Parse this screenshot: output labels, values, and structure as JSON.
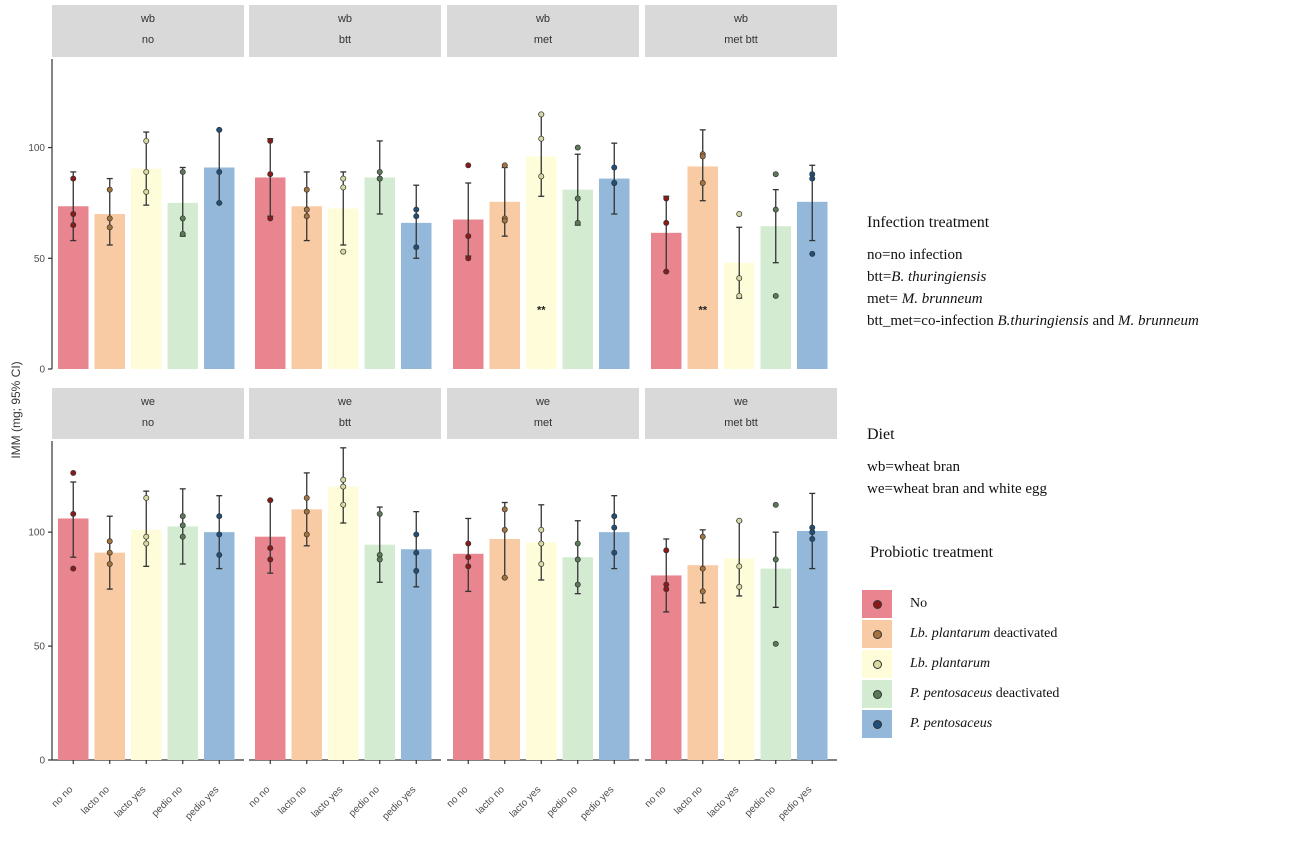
{
  "colors": {
    "no_no": "#e8858f",
    "lacto_no": "#f9cba4",
    "lacto_yes": "#fefcd9",
    "pedio_no": "#d3ecd1",
    "pedio_yes": "#93b8d9"
  },
  "legend": {
    "infection_title": "Infection treatment",
    "infection_items": [
      {
        "pre": "no=no infection",
        "it1": "",
        "mid": "",
        "it2": ""
      },
      {
        "pre": "btt=",
        "it1": "B. thuringiensis",
        "mid": "",
        "it2": ""
      },
      {
        "pre": "met= ",
        "it1": "M. brunneum",
        "mid": "",
        "it2": ""
      },
      {
        "pre": "btt_met=co-infection ",
        "it1": "B.thuringiensis",
        "mid": " and ",
        "it2": "M. brunneum"
      }
    ],
    "diet_title": "Diet",
    "diet_items": [
      "wb=wheat bran",
      "we=wheat bran and white egg"
    ],
    "probiotic_title": "Probiotic treatment",
    "probiotic_items": [
      {
        "it": "",
        "rest": "No",
        "color": "#e8858f",
        "dot": "#8b1a1a"
      },
      {
        "it": "Lb. plantarum",
        "rest": " deactivated",
        "color": "#f9cba4",
        "dot": "#a3743f"
      },
      {
        "it": "Lb. plantarum",
        "rest": "",
        "color": "#fefcd9",
        "dot": "#d9d9a3"
      },
      {
        "it": "P. pentosaceus",
        "rest": " deactivated",
        "color": "#d3ecd1",
        "dot": "#5a7a58"
      },
      {
        "it": "P. pentosaceus",
        "rest": "",
        "color": "#93b8d9",
        "dot": "#1f4f7a"
      }
    ]
  },
  "chart_data": {
    "type": "bar",
    "ylabel": "IMM (mg; 95% CI)",
    "ylim": [
      0,
      140
    ],
    "yticks": [
      0,
      50,
      100
    ],
    "categories": [
      "no no",
      "lacto no",
      "lacto yes",
      "pedio no",
      "pedio yes"
    ],
    "category_colors": [
      "#e8858f",
      "#f9cba4",
      "#fefcd9",
      "#d3ecd1",
      "#93b8d9"
    ],
    "point_colors": [
      "#8b1a1a",
      "#a3743f",
      "#d9d9a3",
      "#5a7a58",
      "#1f4f7a"
    ],
    "panels": [
      {
        "diet": "wb",
        "infection": "no",
        "row": 0,
        "col": 0,
        "sig": [],
        "values": [
          73.5,
          70,
          90.5,
          75,
          91
        ],
        "ci": [
          [
            58,
            89
          ],
          [
            56,
            86
          ],
          [
            74,
            107
          ],
          [
            60,
            91
          ],
          [
            75,
            108
          ]
        ],
        "points": [
          [
            86,
            70,
            65
          ],
          [
            81,
            68,
            64
          ],
          [
            103,
            89,
            80
          ],
          [
            89,
            68,
            61
          ],
          [
            108,
            89,
            75
          ]
        ]
      },
      {
        "diet": "wb",
        "infection": "btt",
        "row": 0,
        "col": 1,
        "sig": [],
        "values": [
          86.5,
          73.5,
          72.5,
          86.5,
          66
        ],
        "ci": [
          [
            69,
            104
          ],
          [
            58,
            89
          ],
          [
            56,
            89
          ],
          [
            70,
            103
          ],
          [
            50,
            83
          ]
        ],
        "points": [
          [
            103,
            88,
            68
          ],
          [
            81,
            72,
            69
          ],
          [
            86,
            82,
            53
          ],
          [
            89,
            86,
            86
          ],
          [
            72,
            69,
            55
          ]
        ]
      },
      {
        "diet": "wb",
        "infection": "met",
        "row": 0,
        "col": 2,
        "sig": [
          2
        ],
        "values": [
          67.5,
          75.5,
          96,
          81,
          86
        ],
        "ci": [
          [
            51,
            84
          ],
          [
            60,
            91
          ],
          [
            78,
            115
          ],
          [
            65,
            97
          ],
          [
            70,
            102
          ]
        ],
        "points": [
          [
            92,
            60,
            50
          ],
          [
            92,
            68,
            67
          ],
          [
            115,
            104,
            87
          ],
          [
            100,
            77,
            66
          ],
          [
            91,
            84,
            84
          ]
        ]
      },
      {
        "diet": "wb",
        "infection": "met btt",
        "row": 0,
        "col": 3,
        "sig": [
          1
        ],
        "values": [
          61.5,
          91.5,
          48,
          64.5,
          75.5
        ],
        "ci": [
          [
            44,
            78
          ],
          [
            76,
            108
          ],
          [
            32,
            64
          ],
          [
            48,
            81
          ],
          [
            58,
            92
          ]
        ],
        "points": [
          [
            77,
            66,
            44
          ],
          [
            97,
            96,
            84
          ],
          [
            70,
            41,
            33
          ],
          [
            88,
            72,
            33
          ],
          [
            88,
            86,
            52
          ]
        ]
      },
      {
        "diet": "we",
        "infection": "no",
        "row": 1,
        "col": 0,
        "sig": [],
        "values": [
          106,
          91,
          101,
          102.5,
          100
        ],
        "ci": [
          [
            89,
            122
          ],
          [
            75,
            107
          ],
          [
            85,
            118
          ],
          [
            86,
            119
          ],
          [
            84,
            116
          ]
        ],
        "points": [
          [
            126,
            108,
            84
          ],
          [
            96,
            91,
            86
          ],
          [
            115,
            98,
            95
          ],
          [
            107,
            103,
            98
          ],
          [
            107,
            99,
            90
          ]
        ]
      },
      {
        "diet": "we",
        "infection": "btt",
        "row": 1,
        "col": 1,
        "sig": [],
        "values": [
          98,
          110,
          120,
          94.5,
          92.5
        ],
        "ci": [
          [
            82,
            114
          ],
          [
            94,
            126
          ],
          [
            104,
            137
          ],
          [
            78,
            111
          ],
          [
            76,
            109
          ]
        ],
        "points": [
          [
            114,
            93,
            88
          ],
          [
            115,
            109,
            99
          ],
          [
            123,
            120,
            112
          ],
          [
            108,
            90,
            88
          ],
          [
            99,
            91,
            83
          ]
        ]
      },
      {
        "diet": "we",
        "infection": "met",
        "row": 1,
        "col": 2,
        "sig": [],
        "values": [
          90.5,
          97,
          95.5,
          89,
          100
        ],
        "ci": [
          [
            74,
            106
          ],
          [
            80,
            113
          ],
          [
            79,
            112
          ],
          [
            73,
            105
          ],
          [
            84,
            116
          ]
        ],
        "points": [
          [
            95,
            89,
            85
          ],
          [
            110,
            101,
            80
          ],
          [
            101,
            95,
            86
          ],
          [
            95,
            88,
            77
          ],
          [
            107,
            102,
            91
          ]
        ]
      },
      {
        "diet": "we",
        "infection": "met btt",
        "row": 1,
        "col": 3,
        "sig": [],
        "values": [
          81,
          85.5,
          88.5,
          84,
          100.5
        ],
        "ci": [
          [
            65,
            97
          ],
          [
            69,
            101
          ],
          [
            72,
            105
          ],
          [
            67,
            100
          ],
          [
            84,
            117
          ]
        ],
        "points": [
          [
            92,
            77,
            75
          ],
          [
            98,
            84,
            74
          ],
          [
            105,
            85,
            76
          ],
          [
            112,
            88,
            51
          ],
          [
            102,
            97,
            100
          ]
        ]
      }
    ]
  }
}
